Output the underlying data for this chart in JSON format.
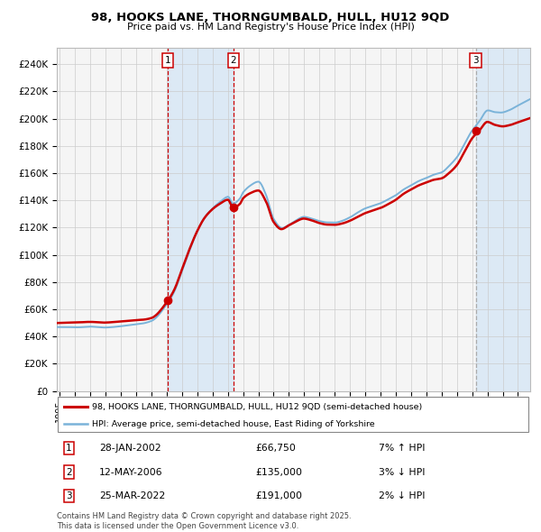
{
  "title1": "98, HOOKS LANE, THORNGUMBALD, HULL, HU12 9QD",
  "title2": "Price paid vs. HM Land Registry's House Price Index (HPI)",
  "ylim": [
    0,
    250000
  ],
  "yticks": [
    0,
    20000,
    40000,
    60000,
    80000,
    100000,
    120000,
    140000,
    160000,
    180000,
    200000,
    220000,
    240000
  ],
  "ytick_labels": [
    "£0",
    "£20K",
    "£40K",
    "£60K",
    "£80K",
    "£100K",
    "£120K",
    "£140K",
    "£160K",
    "£180K",
    "£200K",
    "£220K",
    "£240K"
  ],
  "sale_years_float": [
    2002.074,
    2006.36,
    2022.23
  ],
  "sale_prices": [
    66750,
    135000,
    191000
  ],
  "sale_labels": [
    "1",
    "2",
    "3"
  ],
  "shading_color": "#dce9f5",
  "line_color_red": "#cc0000",
  "line_color_blue": "#7ab3d9",
  "dot_color": "#cc0000",
  "grid_color": "#cccccc",
  "chart_bg": "#f5f5f5",
  "table_entries": [
    {
      "label": "1",
      "date": "28-JAN-2002",
      "price": "£66,750",
      "hpi": "7% ↑ HPI"
    },
    {
      "label": "2",
      "date": "12-MAY-2006",
      "price": "£135,000",
      "hpi": "3% ↓ HPI"
    },
    {
      "label": "3",
      "date": "25-MAR-2022",
      "price": "£191,000",
      "hpi": "2% ↓ HPI"
    }
  ],
  "legend_red": "98, HOOKS LANE, THORNGUMBALD, HULL, HU12 9QD (semi-detached house)",
  "legend_blue": "HPI: Average price, semi-detached house, East Riding of Yorkshire",
  "footnote": "Contains HM Land Registry data © Crown copyright and database right 2025.\nThis data is licensed under the Open Government Licence v3.0.",
  "xlim_start": 1994.8,
  "xlim_end": 2025.8,
  "red_knots": [
    [
      1995.0,
      50000
    ],
    [
      1996.0,
      50500
    ],
    [
      1997.0,
      51000
    ],
    [
      1998.0,
      50500
    ],
    [
      1999.0,
      51000
    ],
    [
      2000.0,
      52000
    ],
    [
      2001.0,
      54000
    ],
    [
      2002.074,
      66750
    ],
    [
      2002.5,
      75000
    ],
    [
      2003.0,
      90000
    ],
    [
      2003.5,
      105000
    ],
    [
      2004.0,
      118000
    ],
    [
      2004.5,
      128000
    ],
    [
      2005.0,
      134000
    ],
    [
      2005.5,
      138000
    ],
    [
      2006.0,
      141000
    ],
    [
      2006.36,
      135000
    ],
    [
      2006.8,
      138000
    ],
    [
      2007.0,
      142000
    ],
    [
      2007.5,
      146000
    ],
    [
      2008.0,
      148000
    ],
    [
      2008.5,
      140000
    ],
    [
      2009.0,
      125000
    ],
    [
      2009.5,
      120000
    ],
    [
      2010.0,
      123000
    ],
    [
      2010.5,
      126000
    ],
    [
      2011.0,
      128000
    ],
    [
      2011.5,
      127000
    ],
    [
      2012.0,
      125000
    ],
    [
      2012.5,
      124000
    ],
    [
      2013.0,
      124000
    ],
    [
      2013.5,
      125000
    ],
    [
      2014.0,
      127000
    ],
    [
      2014.5,
      130000
    ],
    [
      2015.0,
      133000
    ],
    [
      2015.5,
      135000
    ],
    [
      2016.0,
      137000
    ],
    [
      2016.5,
      140000
    ],
    [
      2017.0,
      143000
    ],
    [
      2017.5,
      147000
    ],
    [
      2018.0,
      150000
    ],
    [
      2018.5,
      153000
    ],
    [
      2019.0,
      155000
    ],
    [
      2019.5,
      157000
    ],
    [
      2020.0,
      158000
    ],
    [
      2020.5,
      162000
    ],
    [
      2021.0,
      168000
    ],
    [
      2021.5,
      178000
    ],
    [
      2022.0,
      188000
    ],
    [
      2022.23,
      191000
    ],
    [
      2022.5,
      194000
    ],
    [
      2023.0,
      200000
    ],
    [
      2023.5,
      198000
    ],
    [
      2024.0,
      197000
    ],
    [
      2024.5,
      198000
    ],
    [
      2025.0,
      200000
    ],
    [
      2025.5,
      202000
    ]
  ],
  "blue_offset_knots": [
    [
      1995.0,
      -3000
    ],
    [
      1998.0,
      -3500
    ],
    [
      2000.0,
      -3000
    ],
    [
      2002.0,
      -2000
    ],
    [
      2003.0,
      -2000
    ],
    [
      2004.0,
      -1000
    ],
    [
      2005.0,
      0
    ],
    [
      2006.0,
      2000
    ],
    [
      2007.0,
      4000
    ],
    [
      2008.0,
      6000
    ],
    [
      2009.0,
      2000
    ],
    [
      2010.0,
      0
    ],
    [
      2011.0,
      1000
    ],
    [
      2012.0,
      1000
    ],
    [
      2013.0,
      1000
    ],
    [
      2014.0,
      2000
    ],
    [
      2015.0,
      3000
    ],
    [
      2016.0,
      3000
    ],
    [
      2017.0,
      3000
    ],
    [
      2018.0,
      3000
    ],
    [
      2019.0,
      3000
    ],
    [
      2020.0,
      4000
    ],
    [
      2021.0,
      5000
    ],
    [
      2022.0,
      5000
    ],
    [
      2023.0,
      8000
    ],
    [
      2024.0,
      10000
    ],
    [
      2025.0,
      12000
    ],
    [
      2025.5,
      13000
    ]
  ]
}
